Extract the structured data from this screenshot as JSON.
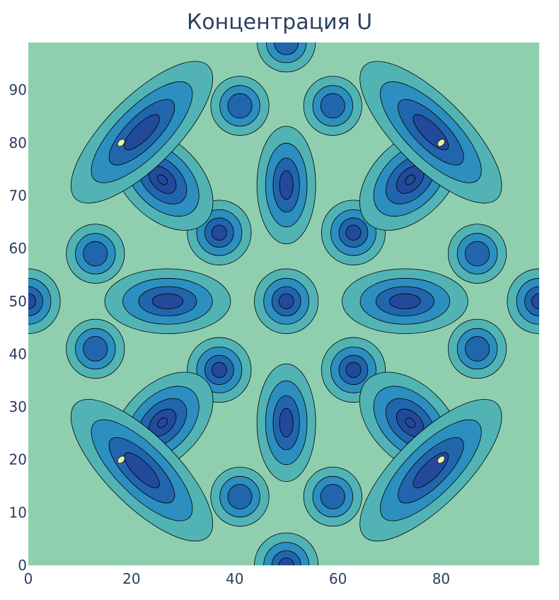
{
  "chart_data": {
    "type": "contour",
    "title": "Концентрация U",
    "xlabel": "",
    "ylabel": "",
    "xlim": [
      0,
      99
    ],
    "ylim": [
      0,
      99
    ],
    "x_ticks": [
      0,
      20,
      40,
      60,
      80
    ],
    "y_ticks": [
      0,
      10,
      20,
      30,
      40,
      50,
      60,
      70,
      80,
      90
    ],
    "colorscale": [
      "#e6f2a9",
      "#8fcfb0",
      "#52b3b4",
      "#2c8fbf",
      "#2166ac",
      "#22499a"
    ],
    "contour_levels": 5,
    "features": [
      {
        "name": "center-spot",
        "x": 50,
        "y": 50,
        "depth": 4
      },
      {
        "name": "left-lobe",
        "x": 27,
        "y": 50,
        "depth": 4
      },
      {
        "name": "right-lobe",
        "x": 73,
        "y": 50,
        "depth": 4
      },
      {
        "name": "upper-vertical",
        "x": 50,
        "y": 72,
        "depth": 4
      },
      {
        "name": "lower-vertical",
        "x": 50,
        "y": 27,
        "depth": 4
      },
      {
        "name": "inner-spot-ul",
        "x": 37,
        "y": 63,
        "depth": 4
      },
      {
        "name": "inner-spot-ur",
        "x": 63,
        "y": 63,
        "depth": 4
      },
      {
        "name": "inner-spot-ll",
        "x": 37,
        "y": 37,
        "depth": 4
      },
      {
        "name": "inner-spot-lr",
        "x": 63,
        "y": 37,
        "depth": 4
      },
      {
        "name": "diagonal-ul",
        "x": 26,
        "y": 73,
        "depth": 5
      },
      {
        "name": "diagonal-ur",
        "x": 74,
        "y": 73,
        "depth": 5
      },
      {
        "name": "diagonal-ll",
        "x": 26,
        "y": 27,
        "depth": 5
      },
      {
        "name": "diagonal-lr",
        "x": 74,
        "y": 27,
        "depth": 5
      },
      {
        "name": "top-spot-l",
        "x": 41,
        "y": 87,
        "depth": 3
      },
      {
        "name": "top-spot-r",
        "x": 59,
        "y": 87,
        "depth": 3
      },
      {
        "name": "bottom-spot-l",
        "x": 41,
        "y": 13,
        "depth": 3
      },
      {
        "name": "bottom-spot-r",
        "x": 59,
        "y": 13,
        "depth": 3
      },
      {
        "name": "side-spot-l-upper",
        "x": 13,
        "y": 59,
        "depth": 3
      },
      {
        "name": "side-spot-l-lower",
        "x": 13,
        "y": 41,
        "depth": 3
      },
      {
        "name": "side-spot-r-upper",
        "x": 87,
        "y": 59,
        "depth": 3
      },
      {
        "name": "side-spot-r-lower",
        "x": 87,
        "y": 41,
        "depth": 3
      },
      {
        "name": "outer-arc-ul",
        "x": 22,
        "y": 82,
        "depth": 4
      },
      {
        "name": "outer-arc-ur",
        "x": 78,
        "y": 82,
        "depth": 4
      },
      {
        "name": "outer-arc-ll",
        "x": 22,
        "y": 18,
        "depth": 4
      },
      {
        "name": "outer-arc-lr",
        "x": 78,
        "y": 18,
        "depth": 4
      },
      {
        "name": "edge-left-mid",
        "x": 0,
        "y": 50,
        "depth": 4
      },
      {
        "name": "edge-right-mid",
        "x": 99,
        "y": 50,
        "depth": 4
      },
      {
        "name": "edge-bottom-mid",
        "x": 50,
        "y": 0,
        "depth": 4
      },
      {
        "name": "edge-top-mid",
        "x": 50,
        "y": 99,
        "depth": 3
      },
      {
        "name": "small-peak-ul",
        "x": 18,
        "y": 80,
        "depth": 0
      },
      {
        "name": "small-peak-ur",
        "x": 80,
        "y": 80,
        "depth": 0
      },
      {
        "name": "small-peak-ll",
        "x": 18,
        "y": 20,
        "depth": 0
      },
      {
        "name": "small-peak-lr",
        "x": 80,
        "y": 20,
        "depth": 0
      }
    ]
  }
}
